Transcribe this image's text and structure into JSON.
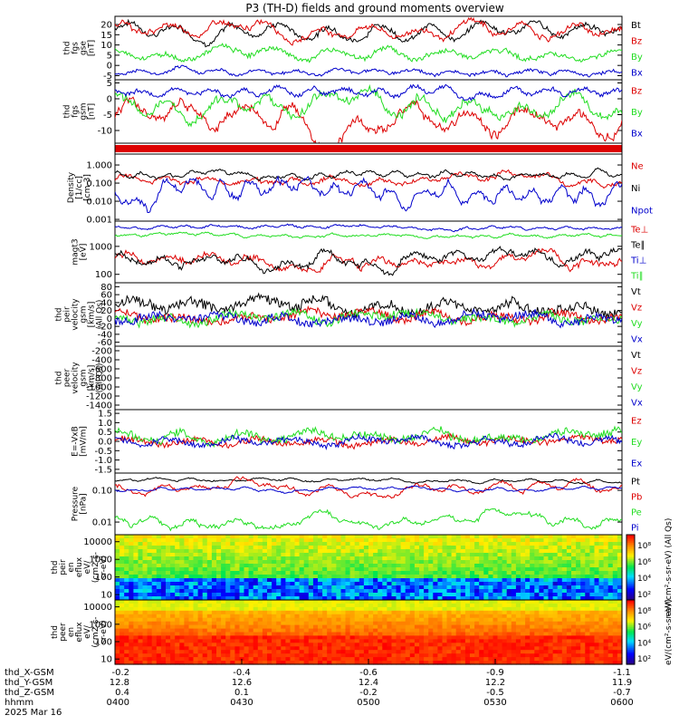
{
  "title": "P3 (TH-D) fields and ground moments overview",
  "colors": {
    "black": "#000000",
    "red": "#dd0000",
    "green": "#22dd22",
    "blue": "#0000cc",
    "frame": "#000000"
  },
  "chart_data": {
    "type": "line",
    "time_axis": {
      "tick_labels": [
        "0400",
        "0430",
        "0500",
        "0530",
        "0600"
      ],
      "rows": [
        {
          "name": "thd_X-GSM",
          "values": [
            "-0.2",
            "-0.4",
            "-0.6",
            "-0.9",
            "-1.1"
          ]
        },
        {
          "name": "thd_Y-GSM",
          "values": [
            "12.8",
            "12.6",
            "12.4",
            "12.2",
            "11.9"
          ]
        },
        {
          "name": "thd_Z-GSM",
          "values": [
            "0.4",
            "0.1",
            "-0.2",
            "-0.5",
            "-0.7"
          ]
        },
        {
          "name": "hhmm",
          "values": [
            "0400",
            "0430",
            "0500",
            "0530",
            "0600"
          ]
        }
      ],
      "date": "2025 Mar 16"
    },
    "panels": [
      {
        "id": "fgs-gse",
        "ylabel": [
          "thd",
          "fgs",
          "gse",
          "[nT]"
        ],
        "scale": "linear",
        "ylim": [
          -7,
          24
        ],
        "yticks": [
          "20",
          "15",
          "10",
          "5",
          "0",
          "-5"
        ],
        "ytick_values": [
          20,
          15,
          10,
          5,
          0,
          -5
        ],
        "series": [
          {
            "name": "Bt",
            "color": "black",
            "level": 18,
            "amp": 4,
            "noise": 1,
            "period": 10
          },
          {
            "name": "Bz",
            "color": "red",
            "level": 17,
            "amp": 4,
            "noise": 1,
            "period": 10
          },
          {
            "name": "By",
            "color": "green",
            "level": 6,
            "amp": 3,
            "noise": 1,
            "period": 9
          },
          {
            "name": "Bx",
            "color": "blue",
            "level": -3,
            "amp": 1.5,
            "noise": 0.7,
            "period": 13
          }
        ]
      },
      {
        "id": "fgs-gsm",
        "ylabel": [
          "thd",
          "fgs",
          "gsm",
          "[nT]"
        ],
        "scale": "linear",
        "ylim": [
          -14,
          6
        ],
        "yticks": [
          "5",
          "0",
          "-5",
          "-10"
        ],
        "ytick_values": [
          5,
          0,
          -5,
          -10
        ],
        "series": [
          {
            "name": "Bz",
            "color": "red",
            "level": -6,
            "amp": 5,
            "noise": 1,
            "period": 9
          },
          {
            "name": "By",
            "color": "green",
            "level": -2,
            "amp": 4,
            "noise": 1,
            "period": 10
          },
          {
            "name": "Bx",
            "color": "blue",
            "level": 2,
            "amp": 1.5,
            "noise": 0.6,
            "period": 15
          }
        ]
      },
      {
        "id": "bar",
        "ylabel": [],
        "scale": "none",
        "series": []
      },
      {
        "id": "density",
        "ylabel": [
          "Density",
          "[1/cc]",
          "[cm-3]"
        ],
        "scale": "log",
        "ylim": [
          0.0008,
          4
        ],
        "yticks": [
          "1.000",
          "0.100",
          "0.010",
          "0.001"
        ],
        "ytick_values": [
          1,
          0.1,
          0.01,
          0.001
        ],
        "series": [
          {
            "name": "Ne",
            "color": "red",
            "level": 0.15,
            "amp": 0.5,
            "noise": 0.15,
            "period": 12
          },
          {
            "name": "Ni",
            "color": "black",
            "level": 0.3,
            "amp": 0.3,
            "noise": 0.1,
            "period": 20
          },
          {
            "name": "Npot",
            "color": "blue",
            "level": 0.02,
            "amp": 1.0,
            "noise": 0.2,
            "period": 18
          }
        ]
      },
      {
        "id": "temp",
        "ylabel": [
          "magt3",
          "[eV]"
        ],
        "scale": "log",
        "ylim": [
          50,
          8000
        ],
        "yticks": [
          "1000",
          "100"
        ],
        "ytick_values": [
          1000,
          100
        ],
        "series": [
          {
            "name": "Te⊥",
            "color": "red",
            "level": 400,
            "amp": 0.4,
            "noise": 0.15,
            "period": 12
          },
          {
            "name": "Te∥",
            "color": "black",
            "level": 350,
            "amp": 0.4,
            "noise": 0.15,
            "period": 12
          },
          {
            "name": "Ti⊥",
            "color": "blue",
            "level": 5000,
            "amp": 0.1,
            "noise": 0.05,
            "period": 20
          },
          {
            "name": "Ti∥",
            "color": "green",
            "level": 2500,
            "amp": 0.1,
            "noise": 0.05,
            "period": 20
          }
        ]
      },
      {
        "id": "peir-velocity",
        "ylabel": [
          "thd",
          "peir",
          "velocity",
          "gsm",
          "[km/s]",
          "(All Qs)"
        ],
        "scale": "linear",
        "ylim": [
          -70,
          90
        ],
        "yticks": [
          "80",
          "60",
          "40",
          "20",
          "0",
          "-20",
          "-40",
          "-60"
        ],
        "ytick_values": [
          80,
          60,
          40,
          20,
          0,
          -20,
          -40,
          -60
        ],
        "series": [
          {
            "name": "Vt",
            "color": "black",
            "level": 30,
            "amp": 15,
            "noise": 12,
            "period": 8
          },
          {
            "name": "Vz",
            "color": "red",
            "level": 5,
            "amp": 12,
            "noise": 10,
            "period": 8
          },
          {
            "name": "Vy",
            "color": "green",
            "level": 0,
            "amp": 12,
            "noise": 10,
            "period": 8
          },
          {
            "name": "Vx",
            "color": "blue",
            "level": 0,
            "amp": 12,
            "noise": 10,
            "period": 8
          }
        ]
      },
      {
        "id": "peer-velocity",
        "ylabel": [
          "thd",
          "peer",
          "velocity",
          "gsm",
          "[km/s]",
          "(All Qs)"
        ],
        "scale": "linear",
        "ylim": [
          -1500,
          -100
        ],
        "yticks": [
          "-200",
          "-400",
          "-600",
          "-800",
          "-1000",
          "-1200",
          "-1400"
        ],
        "ytick_values": [
          -200,
          -400,
          -600,
          -800,
          -1000,
          -1200,
          -1400
        ],
        "series": [
          {
            "name": "Vt",
            "color": "black",
            "empty": true
          },
          {
            "name": "Vz",
            "color": "red",
            "empty": true
          },
          {
            "name": "Vy",
            "color": "green",
            "empty": true
          },
          {
            "name": "Vx",
            "color": "blue",
            "empty": true
          }
        ]
      },
      {
        "id": "efield",
        "ylabel": [
          "E=-VxB",
          "[mV/m]"
        ],
        "scale": "linear",
        "ylim": [
          -1.7,
          1.7
        ],
        "yticks": [
          "1.5",
          "1.0",
          "0.5",
          "0.0",
          "-0.5",
          "-1.0",
          "-1.5"
        ],
        "ytick_values": [
          1.5,
          1.0,
          0.5,
          0.0,
          -0.5,
          -1.0,
          -1.5
        ],
        "series": [
          {
            "name": "Ez",
            "color": "red",
            "level": 0,
            "amp": 0.2,
            "noise": 0.15,
            "period": 8
          },
          {
            "name": "Ey",
            "color": "green",
            "level": 0.3,
            "amp": 0.3,
            "noise": 0.2,
            "period": 8
          },
          {
            "name": "Ex",
            "color": "blue",
            "level": 0,
            "amp": 0.2,
            "noise": 0.15,
            "period": 8
          }
        ]
      },
      {
        "id": "pressure",
        "ylabel": [
          "Pressure",
          "[nPa]"
        ],
        "scale": "log",
        "ylim": [
          0.004,
          0.35
        ],
        "yticks": [
          "0.10",
          "0.01"
        ],
        "ytick_values": [
          0.1,
          0.01
        ],
        "series": [
          {
            "name": "Pt",
            "color": "black",
            "level": 0.2,
            "amp": 0.1,
            "noise": 0.03,
            "period": 15
          },
          {
            "name": "Pb",
            "color": "red",
            "level": 0.12,
            "amp": 0.3,
            "noise": 0.05,
            "period": 12
          },
          {
            "name": "Pe",
            "color": "green",
            "level": 0.012,
            "amp": 0.3,
            "noise": 0.08,
            "period": 12
          },
          {
            "name": "Pi",
            "color": "blue",
            "level": 0.11,
            "amp": 0.1,
            "noise": 0.03,
            "period": 18
          }
        ]
      }
    ],
    "spectrograms": [
      {
        "id": "peir-spec",
        "ylabel": [
          "thd",
          "peir",
          "en",
          "eflux",
          "eV/",
          "(cm2-s-",
          "sr-eV)"
        ],
        "yticks": [
          "10000",
          "1000",
          "100",
          "10"
        ],
        "ytick_values": [
          10000,
          1000,
          100,
          10
        ],
        "ylim": [
          5,
          25000
        ]
      },
      {
        "id": "peer-spec",
        "ylabel": [
          "thd",
          "peer",
          "en",
          "eflux",
          "eV/",
          "(cm2-s-",
          "sr-eV)"
        ],
        "yticks": [
          "10000",
          "1000",
          "100",
          "10"
        ],
        "ytick_values": [
          10000,
          1000,
          100,
          10
        ],
        "ylim": [
          5,
          25000
        ]
      }
    ],
    "colorbars": [
      {
        "ticks": [
          "10⁸",
          "10⁶",
          "10⁴",
          "10²"
        ],
        "label": "eV/(cm²-s-sr-eV) (All Qs)"
      },
      {
        "ticks": [
          "10⁸",
          "10⁶",
          "10⁴",
          "10²"
        ],
        "label": "eV/(cm²-s-sr-eV)"
      }
    ]
  }
}
